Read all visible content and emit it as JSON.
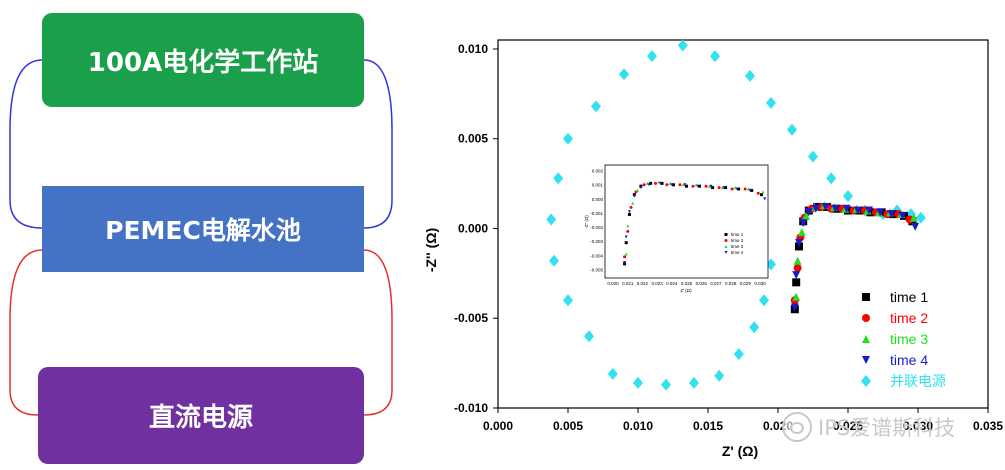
{
  "diagram": {
    "workstation_label": "100A电化学工作站",
    "cell_label": "PEMEC电解水池",
    "power_label": "直流电源",
    "colors": {
      "workstation": "#1aa04a",
      "cell": "#4472c4",
      "power": "#7030a0",
      "blue_link": "#3333dd",
      "red_link": "#e53030"
    }
  },
  "watermark": "IPS爱谱斯科技",
  "chart_data": {
    "type": "scatter",
    "xlabel": "Z'  (Ω)",
    "ylabel": "-Z''  (Ω)",
    "xlim": [
      0.0,
      0.035
    ],
    "ylim": [
      -0.01,
      0.0105
    ],
    "xticks": [
      "0.000",
      "0.005",
      "0.010",
      "0.015",
      "0.020",
      "0.025",
      "0.030",
      "0.035"
    ],
    "yticks": [
      "0.010",
      "0.005",
      "0.000",
      "-0.005",
      "-0.010"
    ],
    "legend_position": "bottom-right",
    "series": [
      {
        "name": "time 1",
        "color": "#000000",
        "marker": "square",
        "x": [
          0.0212,
          0.0213,
          0.0215,
          0.0218,
          0.0222,
          0.0228,
          0.0235,
          0.0242,
          0.025,
          0.0258,
          0.0266,
          0.0274,
          0.0282,
          0.029,
          0.0296
        ],
        "y": [
          -0.0045,
          -0.003,
          -0.001,
          0.0004,
          0.001,
          0.0012,
          0.0012,
          0.0011,
          0.001,
          0.001,
          0.0009,
          0.0009,
          0.0008,
          0.0007,
          0.0004
        ]
      },
      {
        "name": "time 2",
        "color": "#ff0000",
        "marker": "circle",
        "x": [
          0.0212,
          0.0214,
          0.0216,
          0.0219,
          0.0224,
          0.0231,
          0.0238,
          0.0246,
          0.0254,
          0.0262,
          0.027,
          0.0278,
          0.0286,
          0.0294
        ],
        "y": [
          -0.004,
          -0.0022,
          -0.0005,
          0.0006,
          0.0011,
          0.0012,
          0.0011,
          0.0011,
          0.001,
          0.001,
          0.0009,
          0.0008,
          0.0008,
          0.0005
        ]
      },
      {
        "name": "time 3",
        "color": "#22dd22",
        "marker": "triangle-up",
        "x": [
          0.0213,
          0.0214,
          0.0217,
          0.022,
          0.0226,
          0.0233,
          0.024,
          0.0248,
          0.0256,
          0.0264,
          0.0272,
          0.028,
          0.0288,
          0.0297
        ],
        "y": [
          -0.0038,
          -0.0018,
          -0.0002,
          0.0007,
          0.0012,
          0.0013,
          0.0012,
          0.0011,
          0.0011,
          0.001,
          0.0009,
          0.0009,
          0.0008,
          0.0006
        ]
      },
      {
        "name": "time 4",
        "color": "#1a1acc",
        "marker": "triangle-down",
        "x": [
          0.0212,
          0.0213,
          0.0215,
          0.0218,
          0.0222,
          0.0227,
          0.0234,
          0.0241,
          0.0249,
          0.0257,
          0.0265,
          0.0273,
          0.0281,
          0.0289,
          0.0298
        ],
        "y": [
          -0.0044,
          -0.0026,
          -0.0008,
          0.0003,
          0.0009,
          0.0011,
          0.0012,
          0.0011,
          0.0011,
          0.001,
          0.001,
          0.0009,
          0.0008,
          0.0007,
          0.0001
        ]
      },
      {
        "name": "并联电源",
        "color": "#33e0f0",
        "marker": "diamond",
        "x": [
          0.0132,
          0.011,
          0.009,
          0.007,
          0.005,
          0.0043,
          0.0038,
          0.004,
          0.005,
          0.0065,
          0.0082,
          0.01,
          0.012,
          0.014,
          0.0158,
          0.0172,
          0.0183,
          0.019,
          0.0195,
          0.0155,
          0.018,
          0.0195,
          0.021,
          0.0225,
          0.0238,
          0.025,
          0.0262,
          0.0275,
          0.0285,
          0.0295,
          0.0302
        ],
        "y": [
          0.0102,
          0.0096,
          0.0086,
          0.0068,
          0.005,
          0.0028,
          0.0005,
          -0.0018,
          -0.004,
          -0.006,
          -0.0081,
          -0.0086,
          -0.0087,
          -0.0086,
          -0.0082,
          -0.007,
          -0.0055,
          -0.004,
          -0.002,
          0.0096,
          0.0085,
          0.007,
          0.0055,
          0.004,
          0.0028,
          0.0018,
          0.001,
          0.0008,
          0.001,
          0.0008,
          0.0006
        ]
      }
    ]
  },
  "inset": {
    "xticks": [
      "0.020",
      "0.021",
      "0.022",
      "0.023",
      "0.024",
      "0.025",
      "0.026",
      "0.027",
      "0.028",
      "0.029",
      "0.030"
    ],
    "yticks": [
      "0.002",
      "0.001",
      "0.000",
      "-0.001",
      "-0.002",
      "-0.003",
      "-0.004",
      "-0.005"
    ],
    "xlabel": "Z'  (Ω)",
    "ylabel": "-Z'' (Ω)",
    "legend": [
      "time 1",
      "time 2",
      "time 3",
      "time 4"
    ],
    "xlim": [
      0.02,
      0.03
    ],
    "ylim": [
      -0.0055,
      0.0025
    ]
  }
}
